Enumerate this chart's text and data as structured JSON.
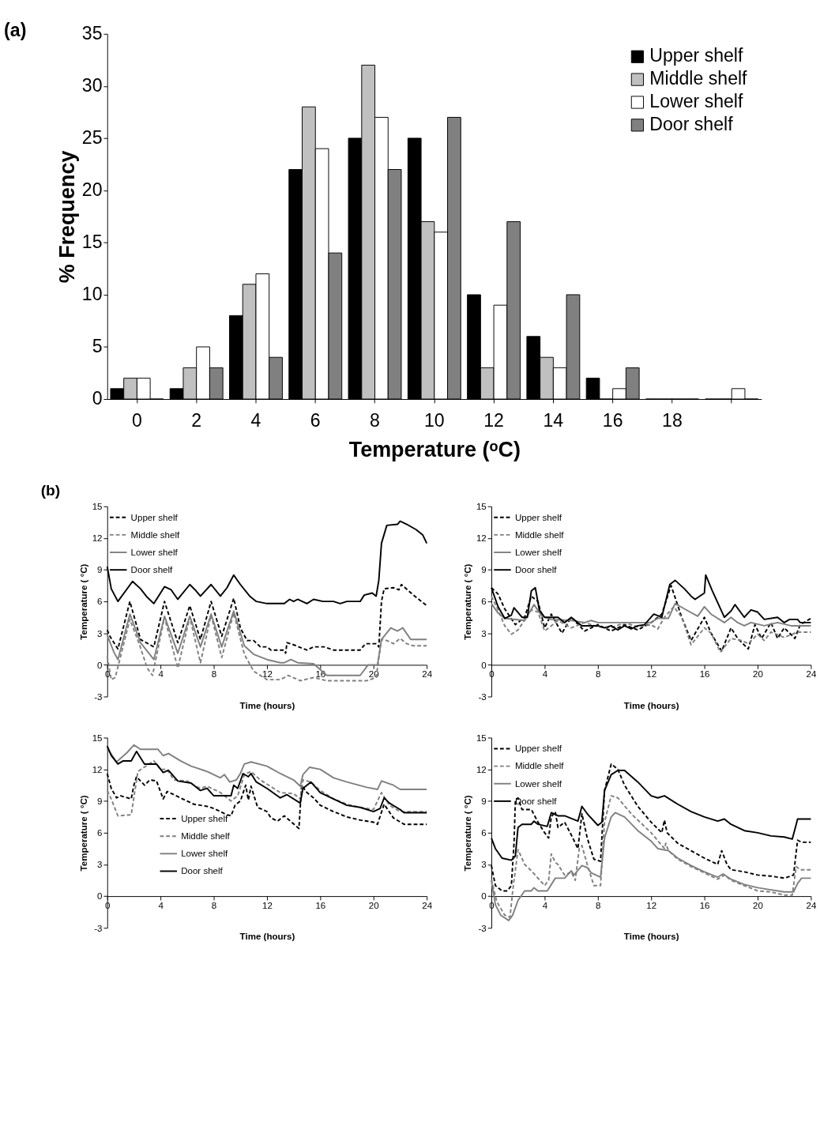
{
  "chart_data": [
    {
      "type": "bar",
      "title": "(a)",
      "xlabel": "Temperature (ᵒC)",
      "ylabel": "% Frequency",
      "categories": [
        "0",
        "2",
        "4",
        "6",
        "8",
        "10",
        "12",
        "14",
        "16",
        "18",
        null
      ],
      "ylim": [
        0,
        35
      ],
      "yticks": [
        0,
        5,
        10,
        15,
        20,
        25,
        30,
        35
      ],
      "grid": false,
      "legend": "top right",
      "series": [
        {
          "name": "Upper shelf",
          "color": "#000000",
          "values": [
            1,
            1,
            8,
            22,
            25,
            25,
            10,
            6,
            2,
            0,
            0
          ]
        },
        {
          "name": "Middle shelf",
          "color": "#c0c0c0",
          "values": [
            2,
            3,
            11,
            28,
            32,
            17,
            3,
            4,
            0,
            0,
            0
          ]
        },
        {
          "name": "Lower shelf",
          "color": "#ffffff",
          "values": [
            2,
            5,
            12,
            24,
            27,
            16,
            9,
            3,
            1,
            0,
            1
          ]
        },
        {
          "name": "Door shelf",
          "color": "#808080",
          "values": [
            0,
            3,
            4,
            14,
            22,
            27,
            17,
            10,
            3,
            0,
            0
          ]
        }
      ]
    },
    {
      "type": "line",
      "title": "(b)",
      "xlabel": "Time (hours)",
      "ylabel": "Temperature ( °C)",
      "xlim": [
        0,
        24
      ],
      "xticks": [
        0,
        4,
        8,
        12,
        16,
        20,
        24
      ],
      "ylim": [
        -3,
        15
      ],
      "yticks": [
        -3,
        0,
        3,
        6,
        9,
        12,
        15
      ],
      "grid": false,
      "legend": "top left",
      "series": [
        {
          "name": "Upper shelf",
          "color": "#000000",
          "line_style": "dashed",
          "x": [
            0,
            0.2,
            0.8,
            1.7,
            2.5,
            3.5,
            4.3,
            5.3,
            6.2,
            7.0,
            7.8,
            8.6,
            9.5,
            10.0,
            10.5,
            11.0,
            11.5,
            12.0,
            12.3,
            13.3,
            13.4,
            13.5,
            14.0,
            15.0,
            15.5,
            16.3,
            17.0,
            19.0,
            19.4,
            20.2,
            20.4,
            20.6,
            20.8,
            21.5,
            21.9,
            22.1,
            23.0,
            24
          ],
          "values": [
            3.3,
            2.7,
            1.5,
            6.0,
            2.4,
            1.7,
            6.0,
            2.1,
            5.6,
            2.4,
            6.0,
            2.7,
            6.3,
            3.5,
            2.3,
            2.3,
            1.7,
            1.7,
            1.4,
            1.4,
            1.1,
            2.1,
            1.9,
            1.4,
            1.7,
            1.7,
            1.4,
            1.4,
            2.0,
            2.0,
            1.7,
            6.0,
            7.2,
            7.3,
            7.1,
            7.6,
            6.6,
            5.6
          ]
        },
        {
          "name": "Middle shelf",
          "color": "#808080",
          "line_style": "dashed",
          "x": [
            0,
            0.3,
            0.6,
            1.7,
            2.4,
            3.0,
            3.4,
            4.3,
            5.3,
            6.2,
            7.0,
            7.8,
            8.6,
            9.5,
            10.3,
            11.0,
            12.0,
            13.0,
            13.6,
            14.5,
            15.5,
            16.5,
            19.5,
            20.2,
            20.6,
            21.0,
            21.5,
            22.0,
            22.5,
            23.0,
            24
          ],
          "values": [
            0.8,
            -1.4,
            -1.2,
            4.3,
            2.0,
            -0.3,
            -1.0,
            4.5,
            -0.3,
            4.5,
            0.2,
            4.7,
            0.7,
            4.9,
            1.0,
            -0.6,
            -1.4,
            -1.4,
            -1.0,
            -1.5,
            -1.2,
            -1.5,
            -1.5,
            -1.2,
            2.4,
            2.3,
            2.0,
            2.5,
            2.0,
            1.8,
            1.8
          ]
        },
        {
          "name": "Lower shelf",
          "color": "#808080",
          "line_style": "solid",
          "x": [
            0,
            0.5,
            0.8,
            1.7,
            2.5,
            3.5,
            4.3,
            5.3,
            6.2,
            7.0,
            7.8,
            8.6,
            9.5,
            10.3,
            11.0,
            12.0,
            13.0,
            13.3,
            13.8,
            14.3,
            15.5,
            16.5,
            19.0,
            19.6,
            20.3,
            20.6,
            21.3,
            21.8,
            22.2,
            22.8,
            24
          ],
          "values": [
            2.8,
            1.2,
            0.5,
            4.8,
            2.1,
            0.5,
            4.6,
            1.1,
            4.6,
            1.7,
            4.8,
            1.7,
            5.1,
            1.8,
            1.0,
            0.5,
            0.2,
            0.2,
            0.5,
            0.2,
            0.1,
            -1.0,
            -1.0,
            0,
            0,
            2.4,
            3.5,
            3.2,
            3.5,
            2.4,
            2.4
          ]
        },
        {
          "name": "Door shelf",
          "color": "#000000",
          "line_style": "solid",
          "x": [
            0,
            0.3,
            0.8,
            1.9,
            2.5,
            3.0,
            3.5,
            4.3,
            4.8,
            5.3,
            6.2,
            6.6,
            7.0,
            7.8,
            8.5,
            9.0,
            9.5,
            10.0,
            10.7,
            11.2,
            12.0,
            13.3,
            13.7,
            14.0,
            14.3,
            15.0,
            15.5,
            16.2,
            17.0,
            17.5,
            18.0,
            19.0,
            19.3,
            19.9,
            20.2,
            20.4,
            20.6,
            21.0,
            21.8,
            22.0,
            22.5,
            23.2,
            23.7,
            24
          ],
          "values": [
            9.3,
            7.2,
            6.0,
            7.9,
            7.2,
            6.4,
            5.8,
            7.4,
            7.1,
            6.2,
            7.6,
            7.1,
            6.5,
            7.6,
            6.5,
            7.3,
            8.5,
            7.6,
            6.5,
            6.0,
            5.8,
            5.8,
            6.2,
            6.0,
            6.2,
            5.8,
            6.2,
            6.0,
            6.0,
            5.8,
            6.0,
            6.0,
            6.6,
            6.8,
            6.5,
            8.0,
            11.5,
            13.2,
            13.3,
            13.6,
            13.3,
            12.8,
            12.3,
            11.5
          ]
        }
      ]
    },
    {
      "type": "line",
      "xlabel": "Time (hours)",
      "ylabel": "Temperature ( °C)",
      "xlim": [
        0,
        24
      ],
      "xticks": [
        0,
        4,
        8,
        12,
        16,
        20,
        24
      ],
      "ylim": [
        -3,
        15
      ],
      "yticks": [
        -3,
        0,
        3,
        6,
        9,
        12,
        15
      ],
      "grid": false,
      "legend": "top left",
      "series": [
        {
          "name": "Upper shelf",
          "color": "#000000",
          "line_style": "dashed",
          "x": [
            0,
            0.5,
            1.0,
            1.8,
            2.5,
            3.0,
            3.5,
            4.0,
            4.5,
            5.3,
            6.0,
            7.0,
            8.0,
            9.0,
            10.0,
            11.0,
            12.0,
            12.8,
            13.5,
            14.3,
            15.0,
            16.0,
            16.5,
            17.3,
            18.0,
            18.5,
            19.3,
            19.8,
            20.3,
            21.0,
            21.5,
            22.0,
            22.8,
            23.2,
            24
          ],
          "values": [
            7.3,
            6.7,
            5.3,
            3.8,
            4.5,
            6.5,
            6.0,
            3.5,
            4.8,
            3.0,
            4.5,
            3.2,
            3.8,
            3.2,
            3.8,
            3.3,
            4.0,
            4.8,
            7.5,
            4.5,
            2.3,
            4.5,
            3.0,
            1.3,
            3.5,
            2.5,
            1.5,
            3.8,
            2.5,
            4.0,
            2.5,
            3.5,
            2.5,
            3.8,
            4.4
          ]
        },
        {
          "name": "Middle shelf",
          "color": "#808080",
          "line_style": "dashed",
          "x": [
            0,
            0.5,
            1.0,
            1.5,
            2.0,
            3.0,
            3.5,
            4.0,
            5.0,
            6.0,
            7.0,
            8.0,
            9.0,
            10.0,
            11.0,
            12.0,
            12.5,
            13.0,
            13.7,
            14.3,
            15.0,
            16.0,
            16.5,
            17.2,
            18.0,
            18.8,
            19.3,
            20.0,
            20.5,
            21.0,
            22.0,
            23.0,
            24
          ],
          "values": [
            6.5,
            5.2,
            3.7,
            2.9,
            3.3,
            5.2,
            5.0,
            3.2,
            4.2,
            3.5,
            4.0,
            3.6,
            3.5,
            4.0,
            3.6,
            3.8,
            3.4,
            4.5,
            5.5,
            4.5,
            1.9,
            3.5,
            3.0,
            1.2,
            2.5,
            2.3,
            2.0,
            2.9,
            2.3,
            3.1,
            2.6,
            3.1,
            3.1
          ]
        },
        {
          "name": "Lower shelf",
          "color": "#808080",
          "line_style": "solid",
          "x": [
            0,
            0.5,
            1.0,
            2.5,
            3.2,
            3.8,
            4.5,
            6.0,
            7.0,
            7.5,
            8.0,
            12.0,
            12.5,
            13.3,
            13.8,
            14.5,
            15.5,
            16.0,
            16.5,
            17.5,
            18.0,
            18.5,
            19.0,
            19.5,
            20.5,
            21.5,
            22.5,
            24
          ],
          "values": [
            5.8,
            4.9,
            4.4,
            4.2,
            5.7,
            4.6,
            4.3,
            4.2,
            4.0,
            4.2,
            4.0,
            4.0,
            4.4,
            4.4,
            5.8,
            5.3,
            4.6,
            5.5,
            4.8,
            4.0,
            4.5,
            4.0,
            3.7,
            4.0,
            3.7,
            4.0,
            3.7,
            3.7
          ]
        },
        {
          "name": "Door shelf",
          "color": "#000000",
          "line_style": "solid",
          "x": [
            0,
            0.5,
            1.0,
            1.5,
            1.7,
            2.3,
            2.7,
            3.0,
            3.3,
            3.6,
            4.0,
            5.0,
            5.5,
            6.0,
            6.8,
            8.0,
            8.5,
            9.0,
            9.5,
            10.0,
            10.5,
            11.0,
            11.5,
            12.2,
            12.8,
            13.4,
            13.8,
            14.5,
            15.0,
            15.3,
            16.0,
            16.1,
            16.6,
            17.5,
            18.0,
            18.3,
            19.0,
            19.5,
            20.0,
            20.5,
            21.5,
            22.0,
            22.4,
            23.0,
            23.2,
            24
          ],
          "values": [
            7.3,
            5.5,
            4.4,
            4.7,
            5.4,
            4.5,
            4.5,
            7.0,
            7.3,
            5.2,
            4.5,
            4.5,
            4.0,
            4.5,
            3.7,
            3.7,
            3.5,
            3.7,
            3.3,
            3.7,
            3.4,
            3.7,
            3.8,
            4.8,
            4.5,
            7.6,
            8.0,
            7.2,
            6.5,
            6.2,
            6.8,
            8.5,
            7.0,
            4.5,
            5.1,
            5.7,
            4.5,
            5.2,
            5.0,
            4.3,
            4.5,
            4.0,
            4.3,
            4.3,
            4.0,
            4.0
          ]
        }
      ]
    },
    {
      "type": "line",
      "xlabel": "Time (hours)",
      "ylabel": "Temperature ( °C)",
      "xlim": [
        0,
        24
      ],
      "xticks": [
        0,
        4,
        8,
        12,
        16,
        20,
        24
      ],
      "ylim": [
        -3,
        15
      ],
      "yticks": [
        -3,
        0,
        3,
        6,
        9,
        12,
        15
      ],
      "grid": false,
      "legend": "bottom left",
      "series": [
        {
          "name": "Upper shelf",
          "color": "#000000",
          "line_style": "dashed",
          "x": [
            0,
            0.3,
            0.7,
            1.0,
            1.8,
            2.0,
            2.2,
            2.8,
            3.2,
            3.7,
            4.2,
            4.5,
            5.5,
            6.5,
            7.5,
            8.0,
            9.0,
            9.3,
            9.6,
            10.0,
            10.4,
            10.6,
            10.8,
            11.3,
            12.0,
            12.3,
            12.8,
            13.3,
            14.4,
            14.6,
            15.0,
            15.5,
            16.0,
            17.0,
            18.0,
            19.0,
            20.0,
            20.3,
            20.8,
            21.5,
            22.3,
            24
          ],
          "values": [
            11.6,
            10.2,
            9.3,
            9.5,
            9.2,
            10.5,
            11.3,
            10.5,
            11.0,
            10.9,
            9.2,
            9.9,
            9.3,
            8.7,
            8.5,
            8.3,
            7.7,
            7.6,
            8.6,
            9.0,
            10.5,
            9.1,
            10.4,
            8.4,
            8.0,
            7.4,
            7.1,
            7.6,
            6.4,
            10.5,
            9.8,
            9.3,
            8.6,
            8.0,
            7.5,
            7.2,
            7.0,
            6.8,
            8.7,
            7.4,
            6.8,
            6.8
          ]
        },
        {
          "name": "Middle shelf",
          "color": "#808080",
          "line_style": "dashed",
          "x": [
            0,
            0.3,
            0.8,
            1.8,
            2.3,
            3.5,
            4.0,
            4.5,
            5.0,
            6.0,
            6.5,
            7.0,
            7.5,
            8.5,
            9.3,
            9.8,
            10.3,
            10.8,
            11.5,
            12.5,
            13.0,
            14.0,
            14.5,
            14.7,
            15.3,
            16.0,
            17.0,
            18.0,
            19.0,
            20.0,
            20.6,
            21.2,
            22.0,
            24
          ],
          "values": [
            10.0,
            9.2,
            7.6,
            7.7,
            11.8,
            12.8,
            12.0,
            12.0,
            11.0,
            10.9,
            10.5,
            10.2,
            10.4,
            9.8,
            9.0,
            9.5,
            11.5,
            11.8,
            11.0,
            10.2,
            9.8,
            9.7,
            9.2,
            11.0,
            10.8,
            10.0,
            9.2,
            8.7,
            8.4,
            8.2,
            9.8,
            8.6,
            8.0,
            8.0
          ]
        },
        {
          "name": "Lower shelf",
          "color": "#808080",
          "line_style": "solid",
          "x": [
            0,
            0.7,
            1.5,
            2.0,
            2.5,
            3.8,
            4.2,
            4.6,
            5.5,
            6.3,
            7.5,
            8.5,
            8.8,
            9.2,
            9.7,
            10.0,
            10.3,
            10.8,
            12.0,
            13.0,
            14.0,
            14.5,
            14.7,
            15.2,
            16.0,
            17.0,
            18.0,
            19.5,
            20.3,
            20.6,
            21.5,
            22.0,
            24
          ],
          "values": [
            14.0,
            12.7,
            13.6,
            14.3,
            13.9,
            13.9,
            13.3,
            13.5,
            12.8,
            12.3,
            11.8,
            11.2,
            11.5,
            10.8,
            11.0,
            11.6,
            12.5,
            12.7,
            12.3,
            11.6,
            11.0,
            10.4,
            11.5,
            12.2,
            12.0,
            11.2,
            10.8,
            10.3,
            10.1,
            10.9,
            10.5,
            10.1,
            10.1
          ]
        },
        {
          "name": "Door shelf",
          "color": "#000000",
          "line_style": "solid",
          "x": [
            0,
            0.3,
            0.8,
            1.2,
            1.8,
            2.2,
            2.8,
            3.7,
            4.2,
            4.6,
            5.3,
            6.3,
            7.0,
            7.5,
            8.0,
            9.3,
            9.5,
            9.8,
            10.2,
            10.6,
            10.8,
            11.2,
            12.0,
            13.0,
            13.5,
            14.5,
            14.7,
            15.3,
            16.0,
            17.0,
            18.0,
            19.0,
            20.0,
            20.5,
            20.8,
            21.2,
            22.0,
            22.3,
            24
          ],
          "values": [
            14.2,
            13.3,
            12.5,
            12.8,
            12.8,
            13.7,
            12.5,
            12.5,
            11.7,
            11.9,
            10.9,
            10.7,
            10.0,
            10.2,
            9.5,
            9.5,
            10.5,
            10.2,
            11.6,
            11.3,
            11.6,
            10.8,
            10.2,
            9.3,
            9.6,
            8.8,
            10.2,
            10.8,
            9.8,
            9.2,
            8.6,
            8.4,
            8.0,
            8.3,
            9.3,
            8.8,
            8.2,
            7.9,
            7.9
          ]
        }
      ]
    },
    {
      "type": "line",
      "xlabel": "Time (hours)",
      "ylabel": "Temperature ( °C)",
      "xlim": [
        0,
        24
      ],
      "xticks": [
        0,
        4,
        8,
        12,
        16,
        20,
        24
      ],
      "ylim": [
        -3,
        15
      ],
      "yticks": [
        -3,
        0,
        3,
        6,
        9,
        12,
        15
      ],
      "grid": false,
      "legend": "top left",
      "series": [
        {
          "name": "Upper shelf",
          "color": "#000000",
          "line_style": "dashed",
          "x": [
            0,
            0.3,
            0.8,
            1.2,
            1.5,
            1.7,
            1.8,
            2.0,
            2.3,
            3.0,
            3.5,
            4.0,
            4.3,
            4.5,
            4.8,
            5.0,
            5.5,
            6.0,
            6.5,
            6.8,
            7.2,
            7.7,
            8.2,
            8.5,
            9.0,
            9.5,
            10.0,
            11.0,
            12.0,
            12.8,
            13.0,
            13.2,
            14.0,
            15.0,
            16.0,
            17.0,
            17.3,
            17.7,
            18.0,
            19.0,
            20.0,
            21.0,
            22.0,
            22.7,
            23.0,
            23.3,
            24
          ],
          "values": [
            2.9,
            1.0,
            0.5,
            0.5,
            1.0,
            5.0,
            9.0,
            9.3,
            8.2,
            8.2,
            7.0,
            6.0,
            5.5,
            7.5,
            8.0,
            6.5,
            7.0,
            5.8,
            4.5,
            7.8,
            5.5,
            3.5,
            3.3,
            10.0,
            12.5,
            12.0,
            10.5,
            8.5,
            7.0,
            6.0,
            7.2,
            6.0,
            5.0,
            4.3,
            3.6,
            3.0,
            4.3,
            3.0,
            2.5,
            2.3,
            2.0,
            1.9,
            1.7,
            2.0,
            5.3,
            5.1,
            5.1
          ]
        },
        {
          "name": "Middle shelf",
          "color": "#808080",
          "line_style": "dashed",
          "x": [
            0,
            0.4,
            1.0,
            1.4,
            1.6,
            2.0,
            2.5,
            3.0,
            4.0,
            4.3,
            4.5,
            4.8,
            5.0,
            5.5,
            6.0,
            6.3,
            6.6,
            6.8,
            7.2,
            7.7,
            8.2,
            8.5,
            9.0,
            9.5,
            10.5,
            12.0,
            13.0,
            13.1,
            13.3,
            14.0,
            15.0,
            16.0,
            17.0,
            17.5,
            18.0,
            19.0,
            20.0,
            21.0,
            22.0,
            22.6,
            22.9,
            23.2,
            24
          ],
          "values": [
            1.6,
            -0.5,
            -1.8,
            -2.0,
            0.5,
            4.4,
            3.0,
            2.4,
            1.0,
            1.5,
            4.0,
            3.2,
            3.0,
            2.0,
            2.3,
            1.5,
            4.5,
            4.8,
            3.0,
            1.0,
            1.0,
            7.0,
            9.5,
            9.3,
            7.8,
            6.0,
            4.5,
            5.0,
            4.3,
            3.5,
            2.8,
            2.2,
            1.6,
            2.0,
            1.5,
            1.0,
            0.5,
            0.4,
            0.1,
            0.1,
            2.8,
            2.5,
            2.5
          ]
        },
        {
          "name": "Lower shelf",
          "color": "#808080",
          "line_style": "solid",
          "x": [
            0,
            0.3,
            0.7,
            1.3,
            1.6,
            2.0,
            2.5,
            3.0,
            3.2,
            3.5,
            4.2,
            4.8,
            5.5,
            6.0,
            6.2,
            6.8,
            7.2,
            7.5,
            8.2,
            8.5,
            9.0,
            9.3,
            10.0,
            11.0,
            12.0,
            12.5,
            13.3,
            14.0,
            15.0,
            16.0,
            17.0,
            17.4,
            18.0,
            19.0,
            20.0,
            21.0,
            22.0,
            22.7,
            23.0,
            23.3,
            24
          ],
          "values": [
            1.5,
            -0.8,
            -1.8,
            -2.3,
            -1.8,
            -0.4,
            0.5,
            0.5,
            0.8,
            0.5,
            0.5,
            1.7,
            1.7,
            2.4,
            2.0,
            2.9,
            2.7,
            2.2,
            1.8,
            5.5,
            7.5,
            7.9,
            7.5,
            6.2,
            5.2,
            4.5,
            4.3,
            3.6,
            2.9,
            2.3,
            1.8,
            2.1,
            1.6,
            1.1,
            0.8,
            0.6,
            0.4,
            0.4,
            1.2,
            1.7,
            1.7
          ]
        },
        {
          "name": "Door shelf",
          "color": "#000000",
          "line_style": "solid",
          "x": [
            0,
            0.3,
            0.8,
            1.5,
            1.8,
            2.0,
            2.3,
            3.0,
            3.2,
            3.5,
            4.2,
            4.5,
            5.0,
            5.5,
            6.5,
            6.8,
            7.2,
            8.0,
            8.3,
            8.5,
            9.0,
            9.5,
            10.0,
            11.0,
            12.0,
            12.5,
            13.0,
            14.0,
            15.0,
            16.0,
            17.0,
            17.5,
            18.0,
            19.0,
            20.0,
            21.0,
            22.0,
            22.6,
            22.9,
            23.0,
            24
          ],
          "values": [
            5.5,
            4.5,
            3.6,
            3.4,
            3.8,
            6.5,
            6.8,
            6.8,
            7.1,
            6.8,
            6.6,
            7.9,
            7.6,
            7.6,
            7.1,
            8.5,
            7.8,
            6.7,
            7.0,
            10.0,
            11.5,
            11.9,
            11.9,
            10.8,
            9.5,
            9.3,
            9.5,
            8.7,
            8.0,
            7.5,
            7.1,
            7.3,
            6.8,
            6.2,
            6.0,
            5.7,
            5.6,
            5.4,
            6.8,
            7.3,
            7.3
          ]
        }
      ]
    }
  ]
}
